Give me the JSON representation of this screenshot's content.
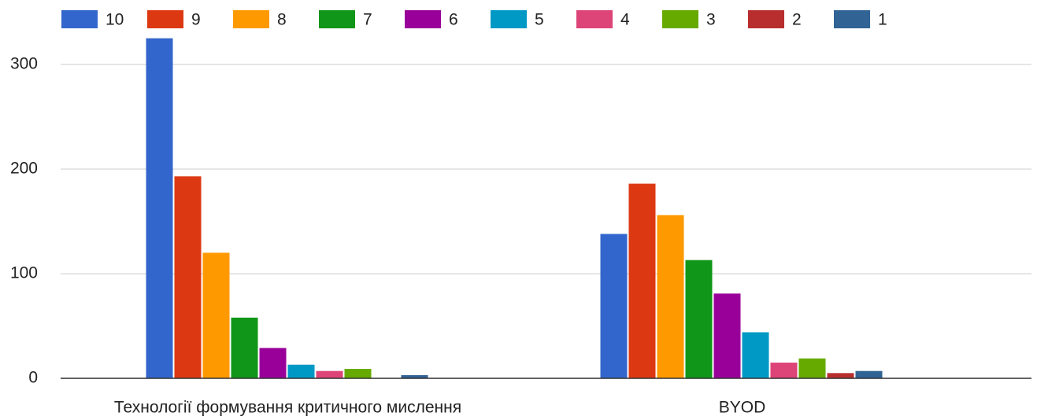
{
  "chart_data": {
    "type": "bar",
    "categories": [
      "Технології формування критичного мислення",
      "BYOD"
    ],
    "series": [
      {
        "name": "10",
        "color": "#3366cc",
        "values": [
          325,
          138
        ]
      },
      {
        "name": "9",
        "color": "#dc3912",
        "values": [
          193,
          186
        ]
      },
      {
        "name": "8",
        "color": "#ff9900",
        "values": [
          120,
          156
        ]
      },
      {
        "name": "7",
        "color": "#109618",
        "values": [
          58,
          113
        ]
      },
      {
        "name": "6",
        "color": "#990099",
        "values": [
          29,
          81
        ]
      },
      {
        "name": "5",
        "color": "#0099c6",
        "values": [
          13,
          44
        ]
      },
      {
        "name": "4",
        "color": "#dd4477",
        "values": [
          7,
          15
        ]
      },
      {
        "name": "3",
        "color": "#66aa00",
        "values": [
          9,
          19
        ]
      },
      {
        "name": "2",
        "color": "#b82e2e",
        "values": [
          0,
          5
        ]
      },
      {
        "name": "1",
        "color": "#316395",
        "values": [
          3,
          7
        ]
      }
    ],
    "ylim": [
      0,
      330
    ],
    "yticks": [
      0,
      100,
      200,
      300
    ],
    "grid": true,
    "legend": "top"
  }
}
